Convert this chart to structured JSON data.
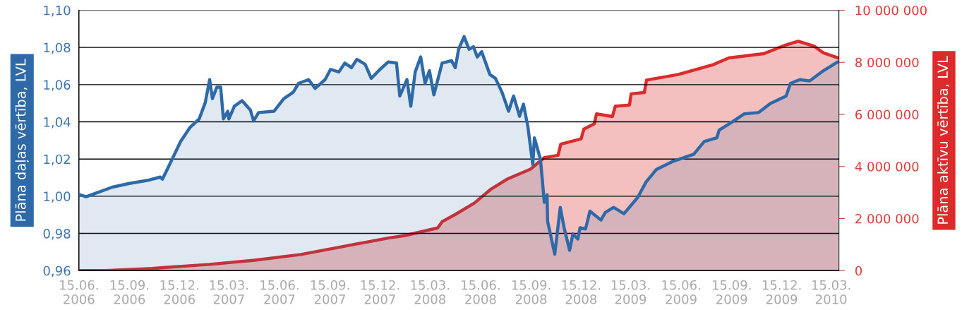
{
  "chart_data": {
    "type": "area",
    "ylabel": "Plāna daļas vērtība, LVL",
    "y2label": "Plāna aktīvu vērtība, LVL",
    "xlim": [
      "2006-06-15",
      "2010-03-29"
    ],
    "xticks": [
      {
        "value": "2006-06-15",
        "label": "15.06.\n2006"
      },
      {
        "value": "2006-09-15",
        "label": "15.09.\n2006"
      },
      {
        "value": "2006-12-15",
        "label": "15.12.\n2006"
      },
      {
        "value": "2007-03-15",
        "label": "15.03.\n2007"
      },
      {
        "value": "2007-06-15",
        "label": "15.06.\n2007"
      },
      {
        "value": "2007-09-15",
        "label": "15.09.\n2007"
      },
      {
        "value": "2007-12-15",
        "label": "15.12.\n2007"
      },
      {
        "value": "2008-03-15",
        "label": "15.03.\n2008"
      },
      {
        "value": "2008-06-15",
        "label": "15.06.\n2008"
      },
      {
        "value": "2008-09-15",
        "label": "15.09.\n2008"
      },
      {
        "value": "2008-12-15",
        "label": "15.12.\n2008"
      },
      {
        "value": "2009-03-15",
        "label": "15.03.\n2009"
      },
      {
        "value": "2009-06-15",
        "label": "15.06.\n2009"
      },
      {
        "value": "2009-09-15",
        "label": "15.09.\n2009"
      },
      {
        "value": "2009-12-15",
        "label": "15.12.\n2009"
      },
      {
        "value": "2010-03-15",
        "label": "15.03.\n2010"
      }
    ],
    "ylim": [
      0.96,
      1.1
    ],
    "yticks": [
      {
        "value": 0.96,
        "label": "0,96"
      },
      {
        "value": 0.98,
        "label": "0,98"
      },
      {
        "value": 1.0,
        "label": "1,00"
      },
      {
        "value": 1.02,
        "label": "1,02"
      },
      {
        "value": 1.04,
        "label": "1,04"
      },
      {
        "value": 1.06,
        "label": "1,06"
      },
      {
        "value": 1.08,
        "label": "1,08"
      },
      {
        "value": 1.1,
        "label": "1,10"
      }
    ],
    "y2lim": [
      0,
      10000000
    ],
    "y2ticks": [
      {
        "value": 0,
        "label": "0"
      },
      {
        "value": 2000000,
        "label": "2 000 000"
      },
      {
        "value": 4000000,
        "label": "4 000 000"
      },
      {
        "value": 6000000,
        "label": "6 000 000"
      },
      {
        "value": 8000000,
        "label": "8 000 000"
      },
      {
        "value": 10000000,
        "label": "10 000 000"
      }
    ],
    "grid": "y",
    "line_style": "solid",
    "series": [
      {
        "color": "#2e6aa8",
        "x": [
          "2006-06-15",
          "2006-06-28",
          "2006-08-15",
          "2006-09-15",
          "2006-10-21",
          "2006-11-10",
          "2006-11-14",
          "2006-11-24",
          "2006-12-17",
          "2007-01-03",
          "2007-01-20",
          "2007-01-31",
          "2007-02-08",
          "2007-02-13",
          "2007-02-21",
          "2007-02-28",
          "2007-03-05",
          "2007-03-13",
          "2007-03-15",
          "2007-03-25",
          "2007-04-08",
          "2007-04-23",
          "2007-04-29",
          "2007-05-08",
          "2007-06-05",
          "2007-06-23",
          "2007-07-10",
          "2007-07-20",
          "2007-08-07",
          "2007-08-19",
          "2007-09-06",
          "2007-09-16",
          "2007-10-01",
          "2007-10-12",
          "2007-10-24",
          "2007-11-03",
          "2007-11-18",
          "2007-11-29",
          "2007-12-15",
          "2007-12-30",
          "2008-01-14",
          "2008-01-20",
          "2008-02-02",
          "2008-02-09",
          "2008-02-17",
          "2008-02-27",
          "2008-03-06",
          "2008-03-14",
          "2008-03-22",
          "2008-04-06",
          "2008-04-23",
          "2008-04-30",
          "2008-05-06",
          "2008-05-16",
          "2008-05-25",
          "2008-06-02",
          "2008-06-09",
          "2008-06-17",
          "2008-07-02",
          "2008-07-12",
          "2008-07-24",
          "2008-08-05",
          "2008-08-14",
          "2008-08-25",
          "2008-09-01",
          "2008-09-09",
          "2008-09-18",
          "2008-09-21",
          "2008-10-02",
          "2008-10-09",
          "2008-10-14",
          "2008-10-15",
          "2008-10-28",
          "2008-11-07",
          "2008-11-14",
          "2008-11-24",
          "2008-11-30",
          "2008-12-09",
          "2008-12-13",
          "2008-12-23",
          "2008-12-31",
          "2009-01-20",
          "2009-01-28",
          "2009-02-12",
          "2009-03-03",
          "2009-03-28",
          "2009-04-12",
          "2009-05-01",
          "2009-05-29",
          "2009-07-08",
          "2009-07-27",
          "2009-08-19",
          "2009-08-23",
          "2009-09-17",
          "2009-10-08",
          "2009-11-03",
          "2009-11-24",
          "2009-12-23",
          "2009-12-31",
          "2010-01-17",
          "2010-02-04",
          "2010-03-01",
          "2010-03-27"
        ],
        "values": [
          1.001,
          0.9997,
          1.0049,
          1.0069,
          1.0087,
          1.0103,
          1.0092,
          1.0151,
          1.0294,
          1.0369,
          1.0416,
          1.0504,
          1.0627,
          1.0525,
          1.0586,
          1.0586,
          1.0416,
          1.0457,
          1.0416,
          1.0484,
          1.0514,
          1.0464,
          1.0405,
          1.045,
          1.0457,
          1.0525,
          1.0559,
          1.0607,
          1.0627,
          1.058,
          1.0627,
          1.0682,
          1.0668,
          1.0716,
          1.0691,
          1.0736,
          1.0709,
          1.0634,
          1.0682,
          1.0722,
          1.0716,
          1.0539,
          1.0627,
          1.0484,
          1.0668,
          1.0749,
          1.0607,
          1.0675,
          1.0545,
          1.0716,
          1.0729,
          1.0691,
          1.079,
          1.0858,
          1.079,
          1.0804,
          1.0749,
          1.0777,
          1.0654,
          1.0634,
          1.0559,
          1.0457,
          1.0539,
          1.043,
          1.0495,
          1.0376,
          1.0171,
          1.0314,
          1.0198,
          0.9967,
          1.0008,
          0.9865,
          0.9688,
          0.994,
          0.9831,
          0.9709,
          0.9797,
          0.977,
          0.9831,
          0.9824,
          0.992,
          0.9872,
          0.9913,
          0.994,
          0.9906,
          0.9994,
          1.0076,
          1.0144,
          1.0185,
          1.0226,
          1.0294,
          1.0314,
          1.0355,
          1.0402,
          1.0443,
          1.045,
          1.0498,
          1.0539,
          1.0607,
          1.0627,
          1.062,
          1.0675,
          1.0722
        ]
      },
      {
        "color": "#dc2b2b",
        "axis": "y2",
        "x": [
          "2006-06-15",
          "2006-08-02",
          "2006-10-26",
          "2006-12-02",
          "2007-02-08",
          "2007-05-01",
          "2007-07-24",
          "2007-10-17",
          "2007-12-30",
          "2008-01-30",
          "2008-03-29",
          "2008-04-06",
          "2008-05-01",
          "2008-06-04",
          "2008-07-04",
          "2008-08-02",
          "2008-09-14",
          "2008-10-09",
          "2008-11-03",
          "2008-11-08",
          "2008-12-15",
          "2008-12-20",
          "2009-01-08",
          "2009-01-12",
          "2009-02-10",
          "2009-02-15",
          "2009-03-13",
          "2009-03-16",
          "2009-04-09",
          "2009-04-13",
          "2009-06-09",
          "2009-08-11",
          "2009-09-10",
          "2009-11-12",
          "2009-12-23",
          "2010-01-14",
          "2010-02-12",
          "2010-03-01",
          "2010-03-27"
        ],
        "values": [
          0,
          0,
          80000,
          140000,
          240000,
          400000,
          620000,
          960000,
          1250000,
          1350000,
          1640000,
          1880000,
          2170000,
          2600000,
          3130000,
          3510000,
          3900000,
          4340000,
          4430000,
          4860000,
          5060000,
          5440000,
          5640000,
          6020000,
          5920000,
          6310000,
          6360000,
          6790000,
          6840000,
          7320000,
          7530000,
          7900000,
          8170000,
          8330000,
          8670000,
          8810000,
          8620000,
          8360000,
          8170000
        ]
      }
    ]
  }
}
